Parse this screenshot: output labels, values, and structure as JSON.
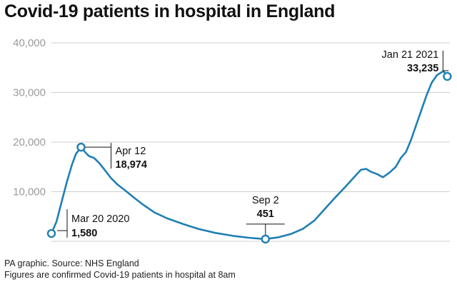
{
  "chart_data": {
    "type": "line",
    "title": "Covid-19 patients in hospital in England",
    "xlabel": "",
    "ylabel": "",
    "ylim": [
      0,
      40000
    ],
    "xlim": [
      "2020-03-20",
      "2021-01-23"
    ],
    "yticks": [
      {
        "value": 10000,
        "label": "10,000"
      },
      {
        "value": 20000,
        "label": "20,000"
      },
      {
        "value": 30000,
        "label": "30,000"
      },
      {
        "value": 40000,
        "label": "40,000"
      }
    ],
    "grid": true,
    "line_color": "#1f7fb3",
    "series": [
      {
        "points": [
          [
            "2020-03-20",
            1580
          ],
          [
            "2020-03-24",
            4000
          ],
          [
            "2020-03-28",
            8000
          ],
          [
            "2020-04-01",
            12000
          ],
          [
            "2020-04-05",
            15500
          ],
          [
            "2020-04-08",
            17600
          ],
          [
            "2020-04-12",
            18974
          ],
          [
            "2020-04-15",
            18000
          ],
          [
            "2020-04-18",
            17200
          ],
          [
            "2020-04-22",
            16800
          ],
          [
            "2020-04-26",
            15800
          ],
          [
            "2020-04-30",
            14500
          ],
          [
            "2020-05-05",
            12800
          ],
          [
            "2020-05-10",
            11500
          ],
          [
            "2020-05-16",
            10300
          ],
          [
            "2020-05-22",
            9000
          ],
          [
            "2020-05-30",
            7400
          ],
          [
            "2020-06-08",
            5800
          ],
          [
            "2020-06-18",
            4600
          ],
          [
            "2020-06-30",
            3500
          ],
          [
            "2020-07-12",
            2500
          ],
          [
            "2020-07-25",
            1700
          ],
          [
            "2020-08-08",
            1100
          ],
          [
            "2020-08-20",
            720
          ],
          [
            "2020-09-02",
            451
          ],
          [
            "2020-09-12",
            800
          ],
          [
            "2020-09-22",
            1500
          ],
          [
            "2020-10-01",
            2500
          ],
          [
            "2020-10-10",
            4200
          ],
          [
            "2020-10-18",
            6500
          ],
          [
            "2020-10-26",
            8800
          ],
          [
            "2020-11-03",
            11000
          ],
          [
            "2020-11-10",
            13000
          ],
          [
            "2020-11-15",
            14400
          ],
          [
            "2020-11-19",
            14600
          ],
          [
            "2020-11-23",
            14000
          ],
          [
            "2020-11-28",
            13500
          ],
          [
            "2020-12-02",
            12900
          ],
          [
            "2020-12-07",
            13800
          ],
          [
            "2020-12-12",
            15000
          ],
          [
            "2020-12-16",
            16800
          ],
          [
            "2020-12-20",
            18000
          ],
          [
            "2020-12-24",
            20500
          ],
          [
            "2020-12-28",
            23500
          ],
          [
            "2021-01-01",
            26500
          ],
          [
            "2021-01-05",
            29500
          ],
          [
            "2021-01-09",
            32000
          ],
          [
            "2021-01-13",
            33500
          ],
          [
            "2021-01-18",
            34300
          ],
          [
            "2021-01-21",
            33235
          ]
        ]
      }
    ],
    "annotations": [
      {
        "date": "2020-03-20",
        "value": 1580,
        "date_label": "Mar 20 2020",
        "value_label": "1,580"
      },
      {
        "date": "2020-04-12",
        "value": 18974,
        "date_label": "Apr 12",
        "value_label": "18,974"
      },
      {
        "date": "2020-09-02",
        "value": 451,
        "date_label": "Sep 2",
        "value_label": "451"
      },
      {
        "date": "2021-01-21",
        "value": 33235,
        "date_label": "Jan 21 2021",
        "value_label": "33,235"
      }
    ]
  },
  "footer": {
    "source": "PA graphic. Source: NHS England",
    "note": "Figures are confirmed Covid-19 patients in hospital at 8am"
  }
}
